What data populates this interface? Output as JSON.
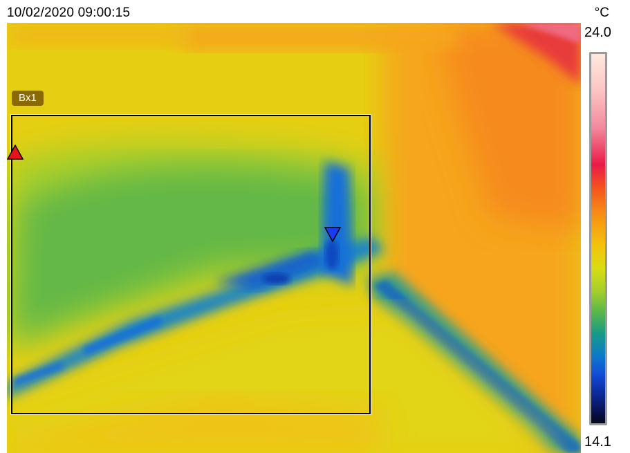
{
  "header": {
    "timestamp": "10/02/2020 09:00:15",
    "unit": "°C"
  },
  "scale": {
    "max": "24.0",
    "min": "14.1"
  },
  "measurement": {
    "box_label": "Bx1",
    "hot_spot_color": "#e8141c",
    "cold_spot_color": "#1a3cf0"
  },
  "image": {
    "palette": "iron",
    "description_colors": {
      "warm": "#f7a31c",
      "neutral": "#e8d614",
      "cool": "#58b64a",
      "cold": "#1670d8"
    }
  }
}
